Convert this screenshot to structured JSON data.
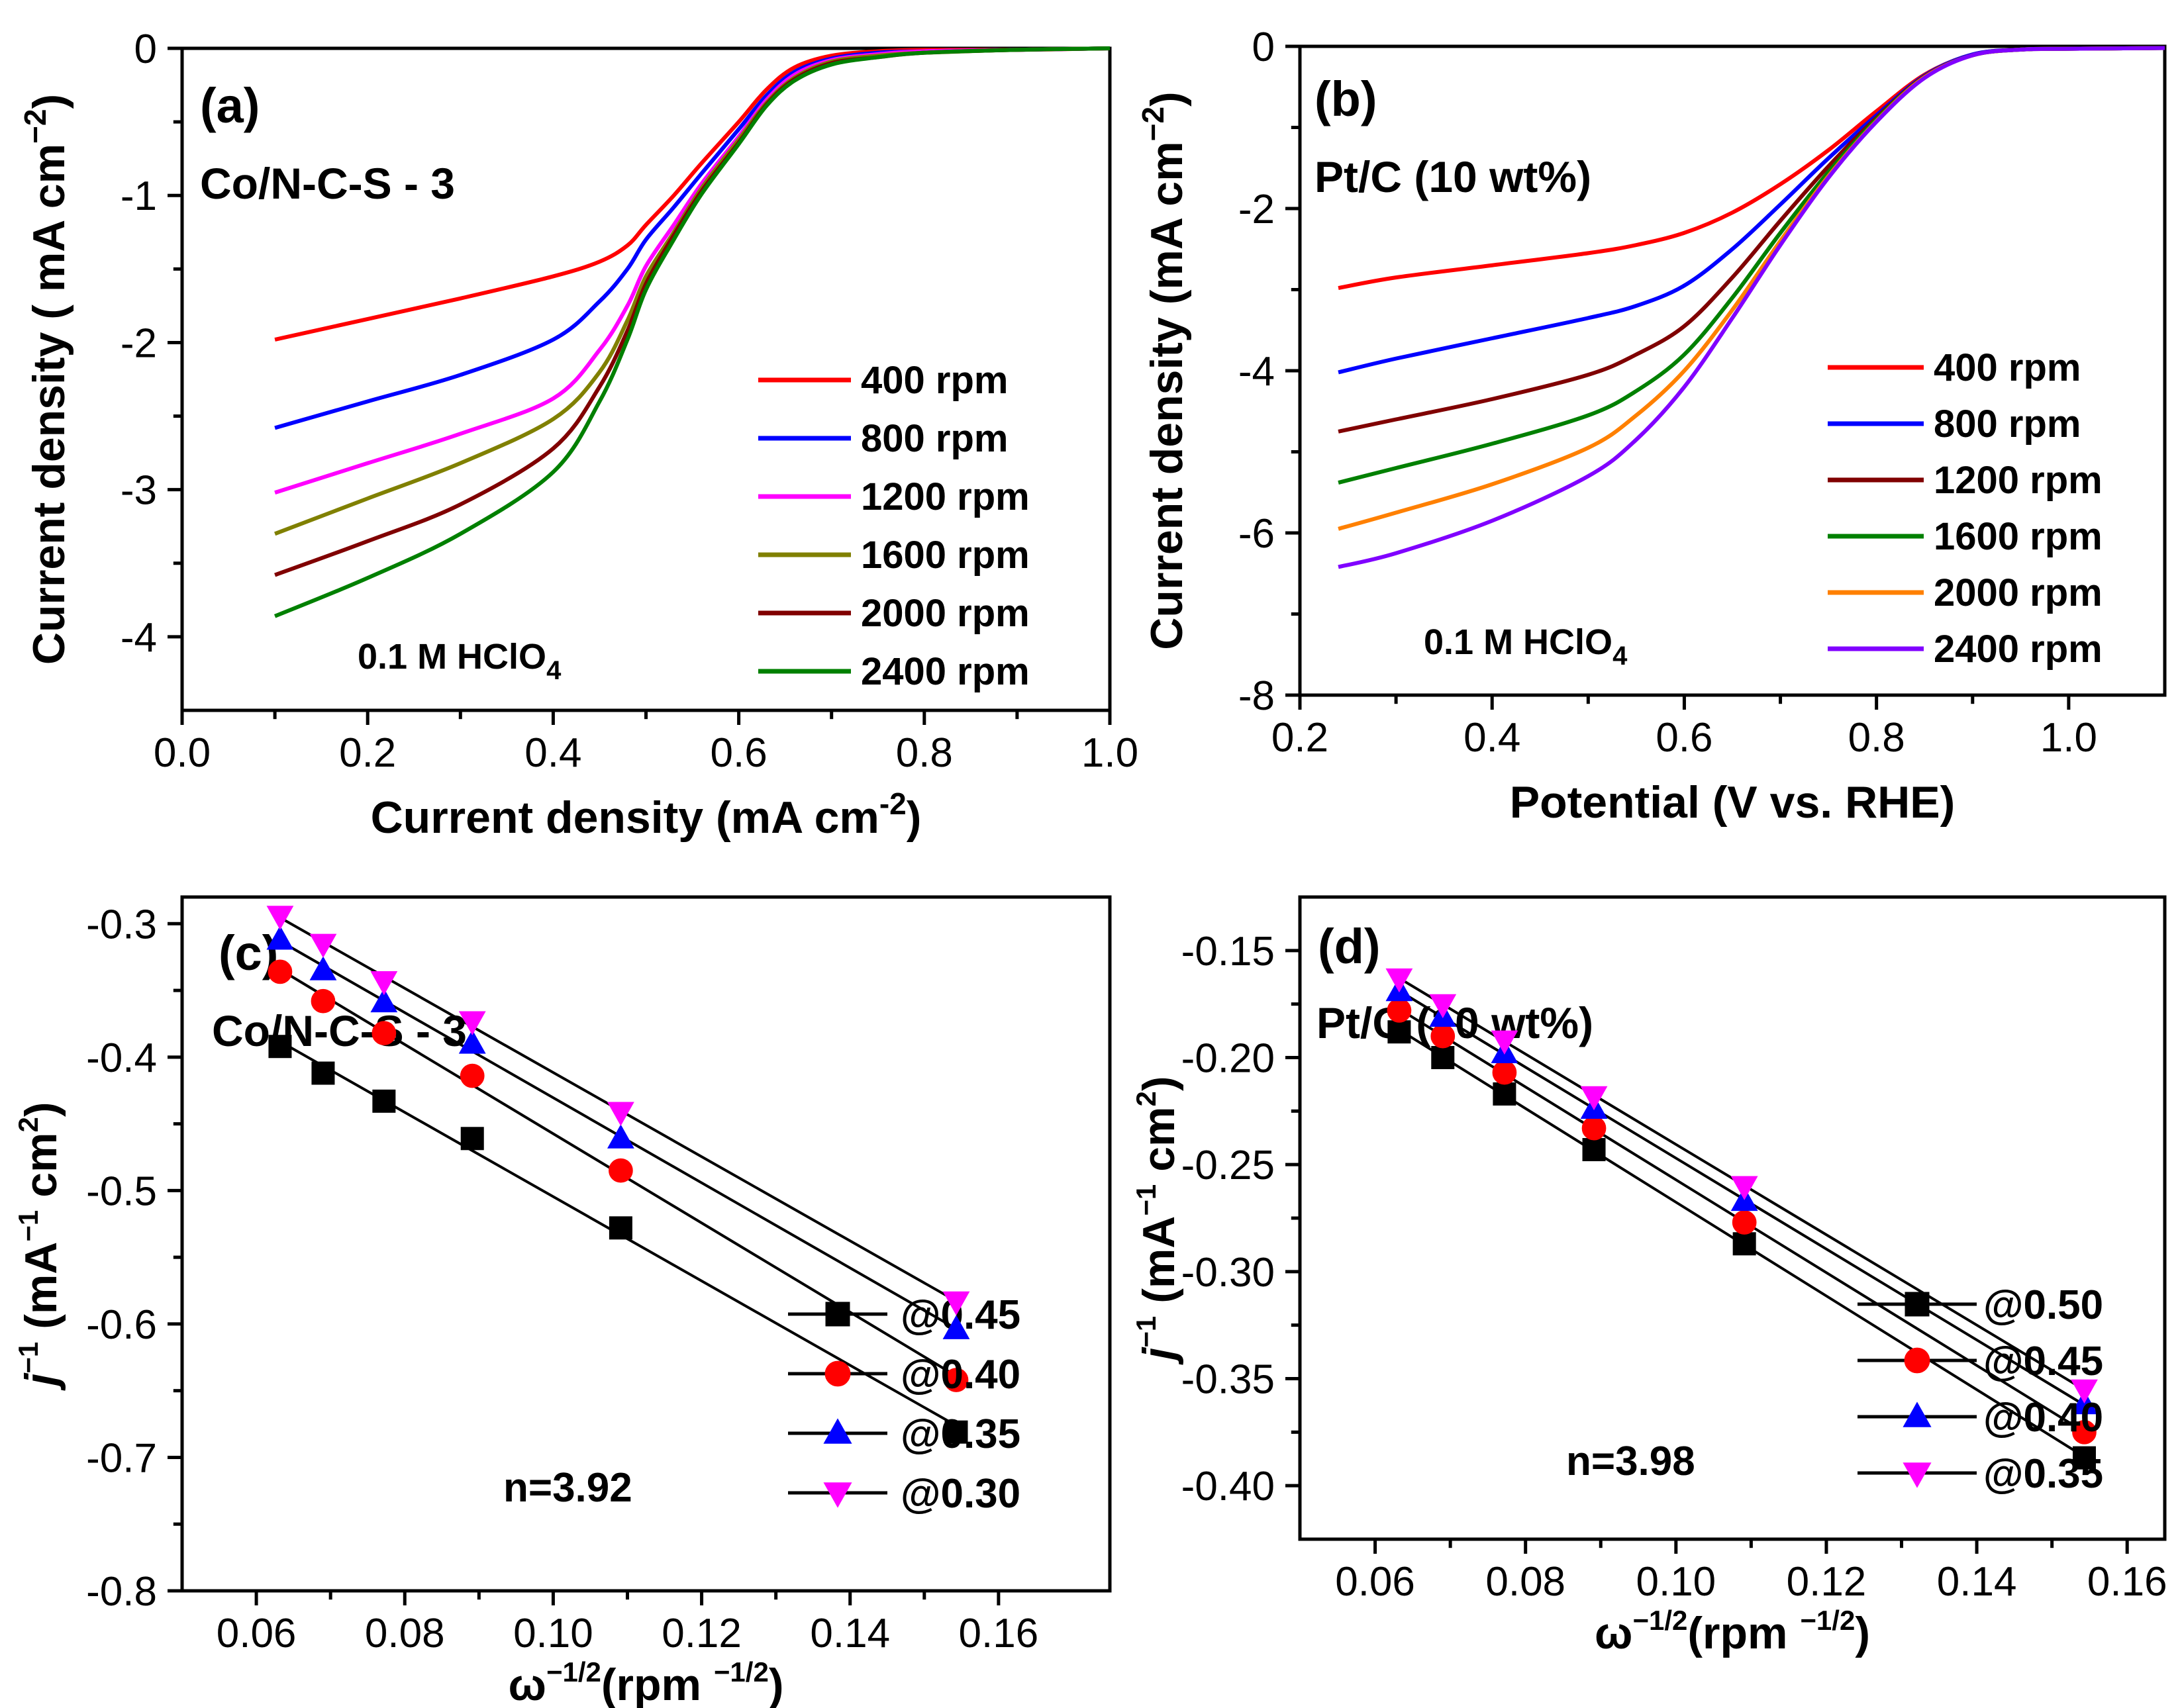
{
  "chart_data": [
    {
      "id": "a",
      "type": "line",
      "panel_label": "(a)",
      "sample": "Co/N-C-S - 3",
      "electrolyte": "0.1 M HClO",
      "electrolyte_sub": "4",
      "xlabel": "Current density (mA cm",
      "xlabel_sup": "-2",
      "xlabel_end": ")",
      "ylabel": "Current density ( mA cm",
      "ylabel_sup": "−2",
      "ylabel_end": ")",
      "xlim": [
        0.0,
        1.0
      ],
      "ylim": [
        -4.5,
        0
      ],
      "xticks": [
        "0.0",
        "0.2",
        "0.4",
        "0.6",
        "0.8",
        "1.0"
      ],
      "yticks": [
        "0",
        "-1",
        "-2",
        "-3",
        "-4"
      ],
      "series": [
        {
          "name": "400 rpm",
          "color": "#ff0000",
          "x": [
            0.1,
            0.2,
            0.3,
            0.4,
            0.45,
            0.48,
            0.5,
            0.53,
            0.56,
            0.6,
            0.63,
            0.66,
            0.7,
            0.75,
            0.8,
            0.9,
            1.0
          ],
          "y": [
            -1.98,
            -1.84,
            -1.7,
            -1.55,
            -1.45,
            -1.34,
            -1.2,
            -1.0,
            -0.78,
            -0.5,
            -0.28,
            -0.13,
            -0.05,
            -0.02,
            -0.01,
            -0.01,
            0.0
          ]
        },
        {
          "name": "800 rpm",
          "color": "#0000ff",
          "x": [
            0.1,
            0.2,
            0.3,
            0.4,
            0.45,
            0.48,
            0.5,
            0.53,
            0.56,
            0.6,
            0.63,
            0.66,
            0.7,
            0.75,
            0.8,
            0.9,
            1.0
          ],
          "y": [
            -2.58,
            -2.4,
            -2.22,
            -1.98,
            -1.72,
            -1.5,
            -1.3,
            -1.08,
            -0.85,
            -0.55,
            -0.32,
            -0.16,
            -0.07,
            -0.03,
            -0.02,
            -0.01,
            0.0
          ]
        },
        {
          "name": "1200 rpm",
          "color": "#ff00ff",
          "x": [
            0.1,
            0.2,
            0.3,
            0.4,
            0.45,
            0.48,
            0.5,
            0.53,
            0.56,
            0.6,
            0.63,
            0.66,
            0.7,
            0.75,
            0.8,
            0.9,
            1.0
          ],
          "y": [
            -3.02,
            -2.82,
            -2.62,
            -2.38,
            -2.05,
            -1.75,
            -1.48,
            -1.2,
            -0.92,
            -0.6,
            -0.35,
            -0.18,
            -0.08,
            -0.04,
            -0.02,
            -0.01,
            0.0
          ]
        },
        {
          "name": "1600 rpm",
          "color": "#808000",
          "x": [
            0.1,
            0.2,
            0.3,
            0.4,
            0.45,
            0.48,
            0.5,
            0.53,
            0.56,
            0.6,
            0.63,
            0.66,
            0.7,
            0.75,
            0.8,
            0.9,
            1.0
          ],
          "y": [
            -3.3,
            -3.06,
            -2.82,
            -2.52,
            -2.2,
            -1.85,
            -1.55,
            -1.25,
            -0.95,
            -0.62,
            -0.37,
            -0.2,
            -0.09,
            -0.05,
            -0.03,
            -0.01,
            0.0
          ]
        },
        {
          "name": "2000 rpm",
          "color": "#800000",
          "x": [
            0.1,
            0.2,
            0.3,
            0.4,
            0.45,
            0.48,
            0.5,
            0.53,
            0.56,
            0.6,
            0.63,
            0.66,
            0.7,
            0.75,
            0.8,
            0.9,
            1.0
          ],
          "y": [
            -3.58,
            -3.35,
            -3.1,
            -2.72,
            -2.3,
            -1.92,
            -1.6,
            -1.27,
            -0.97,
            -0.64,
            -0.38,
            -0.21,
            -0.1,
            -0.06,
            -0.03,
            -0.01,
            0.0
          ]
        },
        {
          "name": "2400 rpm",
          "color": "#008000",
          "x": [
            0.1,
            0.2,
            0.3,
            0.4,
            0.45,
            0.48,
            0.5,
            0.53,
            0.56,
            0.6,
            0.63,
            0.66,
            0.7,
            0.75,
            0.8,
            0.9,
            1.0
          ],
          "y": [
            -3.86,
            -3.6,
            -3.3,
            -2.88,
            -2.4,
            -1.98,
            -1.64,
            -1.3,
            -0.99,
            -0.65,
            -0.39,
            -0.22,
            -0.11,
            -0.06,
            -0.03,
            -0.01,
            0.0
          ]
        }
      ]
    },
    {
      "id": "b",
      "type": "line",
      "panel_label": "(b)",
      "sample": "Pt/C (10 wt%)",
      "electrolyte": "0.1 M HClO",
      "electrolyte_sub": "4",
      "xlabel": "Potential (V vs. RHE)",
      "ylabel": "Current density (mA cm",
      "ylabel_sup": "−2",
      "ylabel_end": ")",
      "xlim": [
        0.2,
        1.1
      ],
      "ylim": [
        -8,
        0
      ],
      "xticks": [
        "0.2",
        "0.4",
        "0.6",
        "0.8",
        "1.0"
      ],
      "yticks": [
        "0",
        "-2",
        "-4",
        "-6",
        "-8"
      ],
      "series": [
        {
          "name": "400 rpm",
          "color": "#ff0000",
          "x": [
            0.24,
            0.3,
            0.4,
            0.5,
            0.55,
            0.6,
            0.65,
            0.7,
            0.75,
            0.8,
            0.85,
            0.9,
            0.95,
            1.0,
            1.1
          ],
          "y": [
            -2.98,
            -2.85,
            -2.7,
            -2.55,
            -2.45,
            -2.3,
            -2.05,
            -1.7,
            -1.28,
            -0.8,
            -0.35,
            -0.1,
            -0.04,
            -0.03,
            -0.02
          ]
        },
        {
          "name": "800 rpm",
          "color": "#0000ff",
          "x": [
            0.24,
            0.3,
            0.4,
            0.5,
            0.55,
            0.6,
            0.65,
            0.7,
            0.75,
            0.8,
            0.85,
            0.9,
            0.95,
            1.0,
            1.1
          ],
          "y": [
            -4.02,
            -3.85,
            -3.6,
            -3.35,
            -3.2,
            -2.95,
            -2.5,
            -1.95,
            -1.38,
            -0.85,
            -0.36,
            -0.1,
            -0.04,
            -0.03,
            -0.02
          ]
        },
        {
          "name": "1200 rpm",
          "color": "#800000",
          "x": [
            0.24,
            0.3,
            0.4,
            0.5,
            0.55,
            0.6,
            0.65,
            0.7,
            0.75,
            0.8,
            0.85,
            0.9,
            0.95,
            1.0,
            1.1
          ],
          "y": [
            -4.75,
            -4.6,
            -4.35,
            -4.05,
            -3.8,
            -3.45,
            -2.85,
            -2.15,
            -1.48,
            -0.88,
            -0.37,
            -0.11,
            -0.04,
            -0.03,
            -0.02
          ]
        },
        {
          "name": "1600 rpm",
          "color": "#008000",
          "x": [
            0.24,
            0.3,
            0.4,
            0.5,
            0.55,
            0.6,
            0.65,
            0.7,
            0.75,
            0.8,
            0.85,
            0.9,
            0.95,
            1.0,
            1.1
          ],
          "y": [
            -5.38,
            -5.2,
            -4.9,
            -4.55,
            -4.25,
            -3.8,
            -3.1,
            -2.3,
            -1.55,
            -0.9,
            -0.38,
            -0.11,
            -0.04,
            -0.03,
            -0.02
          ]
        },
        {
          "name": "2000 rpm",
          "color": "#ff8000",
          "x": [
            0.24,
            0.3,
            0.4,
            0.5,
            0.55,
            0.6,
            0.65,
            0.7,
            0.75,
            0.8,
            0.85,
            0.9,
            0.95,
            1.0,
            1.1
          ],
          "y": [
            -5.95,
            -5.75,
            -5.4,
            -4.95,
            -4.55,
            -4.0,
            -3.25,
            -2.4,
            -1.6,
            -0.92,
            -0.38,
            -0.11,
            -0.04,
            -0.03,
            -0.02
          ]
        },
        {
          "name": "2400 rpm",
          "color": "#8000ff",
          "x": [
            0.24,
            0.3,
            0.4,
            0.5,
            0.55,
            0.6,
            0.65,
            0.7,
            0.75,
            0.8,
            0.85,
            0.9,
            0.95,
            1.0,
            1.1
          ],
          "y": [
            -6.42,
            -6.25,
            -5.85,
            -5.3,
            -4.85,
            -4.2,
            -3.35,
            -2.45,
            -1.62,
            -0.93,
            -0.39,
            -0.11,
            -0.04,
            -0.03,
            -0.02
          ]
        }
      ]
    },
    {
      "id": "c",
      "type": "scatter",
      "panel_label": "(c)",
      "sample": "Co/N-C-S - 3",
      "annotation": "n=3.92",
      "xlabel": "ω",
      "xlabel_sup": "−1/2",
      "xlabel_mid": "(rpm ",
      "xlabel_sup2": "−1/2",
      "xlabel_end": ")",
      "ylabel": "j",
      "ylabel_sup": "−1",
      "ylabel_mid": " (mA",
      "ylabel_sup2": "−1",
      "ylabel_mid2": " cm",
      "ylabel_sup3": "2",
      "ylabel_end": ")",
      "xlim": [
        0.05,
        0.175
      ],
      "ylim": [
        -0.8,
        -0.28
      ],
      "xticks": [
        "0.06",
        "0.08",
        "0.10",
        "0.12",
        "0.14",
        "0.16"
      ],
      "yticks": [
        "-0.8",
        "-0.7",
        "-0.6",
        "-0.5",
        "-0.4",
        "-0.3"
      ],
      "x": [
        0.0632,
        0.069,
        0.0772,
        0.0891,
        0.1091,
        0.1543
      ],
      "series": [
        {
          "name": "@0.45",
          "color": "#000000",
          "marker": "square",
          "y": [
            -0.392,
            -0.412,
            -0.433,
            -0.461,
            -0.528,
            -0.681
          ]
        },
        {
          "name": "@0.40",
          "color": "#ff0000",
          "marker": "circle",
          "y": [
            -0.336,
            -0.358,
            -0.382,
            -0.414,
            -0.485,
            -0.642
          ]
        },
        {
          "name": "@0.35",
          "color": "#0000ff",
          "marker": "triangle-up",
          "y": [
            -0.312,
            -0.335,
            -0.359,
            -0.39,
            -0.461,
            -0.604
          ]
        },
        {
          "name": "@0.30",
          "color": "#ff00ff",
          "marker": "triangle-down",
          "y": [
            -0.294,
            -0.315,
            -0.343,
            -0.373,
            -0.441,
            -0.583
          ]
        }
      ]
    },
    {
      "id": "d",
      "type": "scatter",
      "panel_label": "(d)",
      "sample": "Pt/C (10 wt%)",
      "annotation": "n=3.98",
      "xlabel": "ω",
      "xlabel_sup": "−1/2",
      "xlabel_mid": "(rpm ",
      "xlabel_sup2": "−1/2",
      "xlabel_end": ")",
      "ylabel": "j",
      "ylabel_sup": "−1",
      "ylabel_mid": " (mA",
      "ylabel_sup2": "−1",
      "ylabel_mid2": " cm",
      "ylabel_sup3": "2",
      "ylabel_end": ")",
      "xlim": [
        0.05,
        0.165
      ],
      "ylim": [
        -0.425,
        -0.125
      ],
      "xticks": [
        "0.06",
        "0.08",
        "0.10",
        "0.12",
        "0.14",
        "0.16"
      ],
      "yticks": [
        "-0.40",
        "-0.35",
        "-0.30",
        "-0.25",
        "-0.20",
        "-0.15"
      ],
      "x": [
        0.0632,
        0.069,
        0.0772,
        0.0891,
        0.1091,
        0.1543
      ],
      "series": [
        {
          "name": "@0.50",
          "color": "#000000",
          "marker": "square",
          "y": [
            -0.188,
            -0.2,
            -0.217,
            -0.243,
            -0.287,
            -0.387
          ]
        },
        {
          "name": "@0.45",
          "color": "#ff0000",
          "marker": "circle",
          "y": [
            -0.178,
            -0.19,
            -0.207,
            -0.233,
            -0.277,
            -0.375
          ]
        },
        {
          "name": "@0.40",
          "color": "#0000ff",
          "marker": "triangle-up",
          "y": [
            -0.169,
            -0.181,
            -0.198,
            -0.224,
            -0.267,
            -0.362
          ]
        },
        {
          "name": "@0.35",
          "color": "#ff00ff",
          "marker": "triangle-down",
          "y": [
            -0.163,
            -0.175,
            -0.192,
            -0.218,
            -0.26,
            -0.355
          ]
        }
      ]
    }
  ]
}
